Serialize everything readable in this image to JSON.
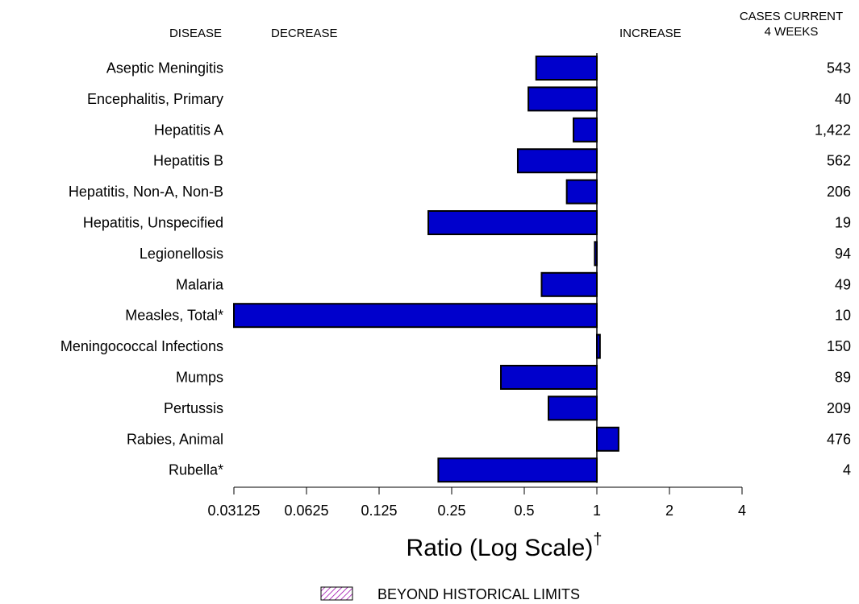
{
  "headers": {
    "disease": "DISEASE",
    "decrease": "DECREASE",
    "increase": "INCREASE",
    "cases_line1": "CASES CURRENT",
    "cases_line2": "4 WEEKS"
  },
  "legend": {
    "label": "BEYOND HISTORICAL LIMITS"
  },
  "colors": {
    "bar": "#0000cc",
    "hatch": "#9900aa"
  },
  "chart_data": {
    "type": "bar",
    "orientation": "horizontal",
    "xlabel": "Ratio (Log Scale)",
    "xlabel_sup": "†",
    "xscale": "log2",
    "xlim": [
      0.03125,
      4
    ],
    "baseline": 1,
    "xticks": [
      "0.03125",
      "0.0625",
      "0.125",
      "0.25",
      "0.5",
      "1",
      "2",
      "4"
    ],
    "categories": [
      "Aseptic Meningitis",
      "Encephalitis, Primary",
      "Hepatitis A",
      "Hepatitis B",
      "Hepatitis, Non-A, Non-B",
      "Hepatitis, Unspecified",
      "Legionellosis",
      "Malaria",
      "Measles, Total*",
      "Meningococcal Infections",
      "Mumps",
      "Pertussis",
      "Rabies, Animal",
      "Rubella*"
    ],
    "values": [
      0.56,
      0.52,
      0.8,
      0.47,
      0.75,
      0.2,
      0.98,
      0.59,
      0.03125,
      1.03,
      0.4,
      0.63,
      1.23,
      0.22
    ],
    "cases": [
      "543",
      "40",
      "1,422",
      "562",
      "206",
      "19",
      "94",
      "49",
      "10",
      "150",
      "89",
      "209",
      "476",
      "4"
    ]
  }
}
